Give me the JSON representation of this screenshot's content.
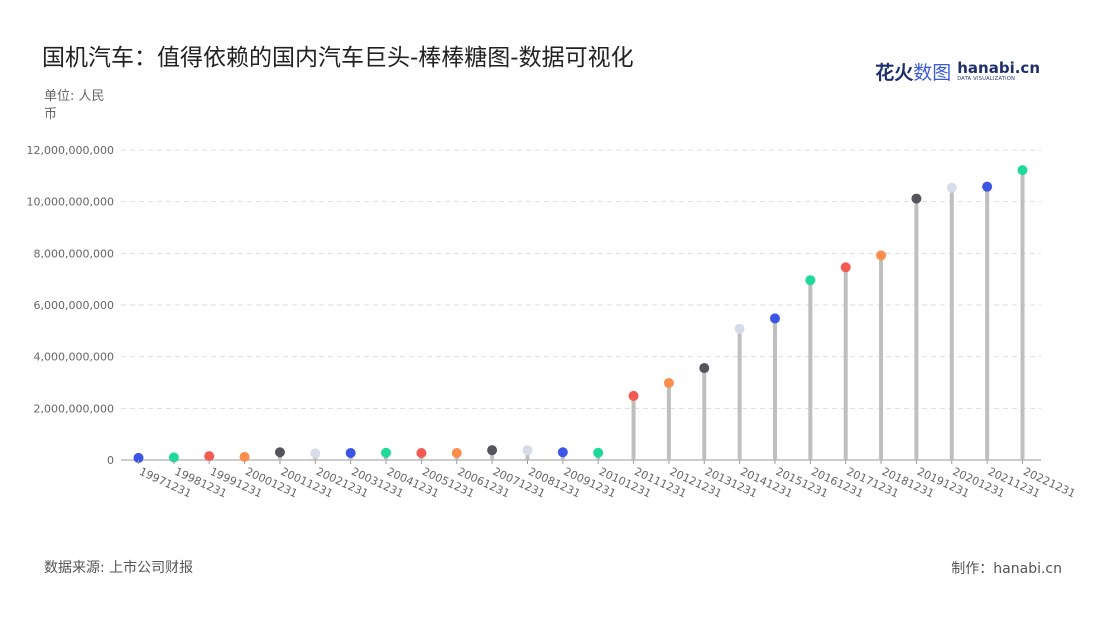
{
  "title": "国机汽车：值得依赖的国内汽车巨头-棒棒糖图-数据可视化",
  "brand": {
    "cn_name": "花火",
    "cn_suffix": "数图",
    "en_name": "hanabi.cn",
    "en_sub": "DATA VISUALIZATION"
  },
  "unit_label": "单位: 人民币",
  "source_label": "数据来源: 上市公司财报",
  "credit_label": "制作：hanabi.cn",
  "chart_data": {
    "type": "lollipop",
    "title": "国机汽车：值得依赖的国内汽车巨头-棒棒糖图-数据可视化",
    "ylabel": "单位: 人民币",
    "ylim": [
      0,
      12000000000
    ],
    "yticks": [
      0,
      2000000000,
      4000000000,
      6000000000,
      8000000000,
      10000000000,
      12000000000
    ],
    "ytick_labels": [
      "0",
      "2,000,000,000",
      "4,000,000,000",
      "6,000,000,000",
      "8,000,000,000",
      "10,000,000,000",
      "12,000,000,000"
    ],
    "grid": true,
    "categories": [
      "19971231",
      "19981231",
      "19991231",
      "20001231",
      "20011231",
      "20021231",
      "20031231",
      "20041231",
      "20051231",
      "20061231",
      "20071231",
      "20081231",
      "20091231",
      "20101231",
      "20111231",
      "20121231",
      "20131231",
      "20141231",
      "20151231",
      "20161231",
      "20171231",
      "20181231",
      "20191231",
      "20201231",
      "20211231",
      "20221231"
    ],
    "values": [
      80000000,
      100000000,
      150000000,
      120000000,
      300000000,
      250000000,
      270000000,
      280000000,
      270000000,
      270000000,
      380000000,
      380000000,
      300000000,
      280000000,
      2480000000,
      2980000000,
      3560000000,
      5080000000,
      5480000000,
      6960000000,
      7460000000,
      7920000000,
      10120000000,
      10540000000,
      10580000000,
      11220000000
    ],
    "palette": [
      "#3b55e6",
      "#1fd99b",
      "#f25a52",
      "#fb8e4d",
      "#55555e",
      "#d8dce8"
    ],
    "stick_color": "#bfbfbf"
  }
}
